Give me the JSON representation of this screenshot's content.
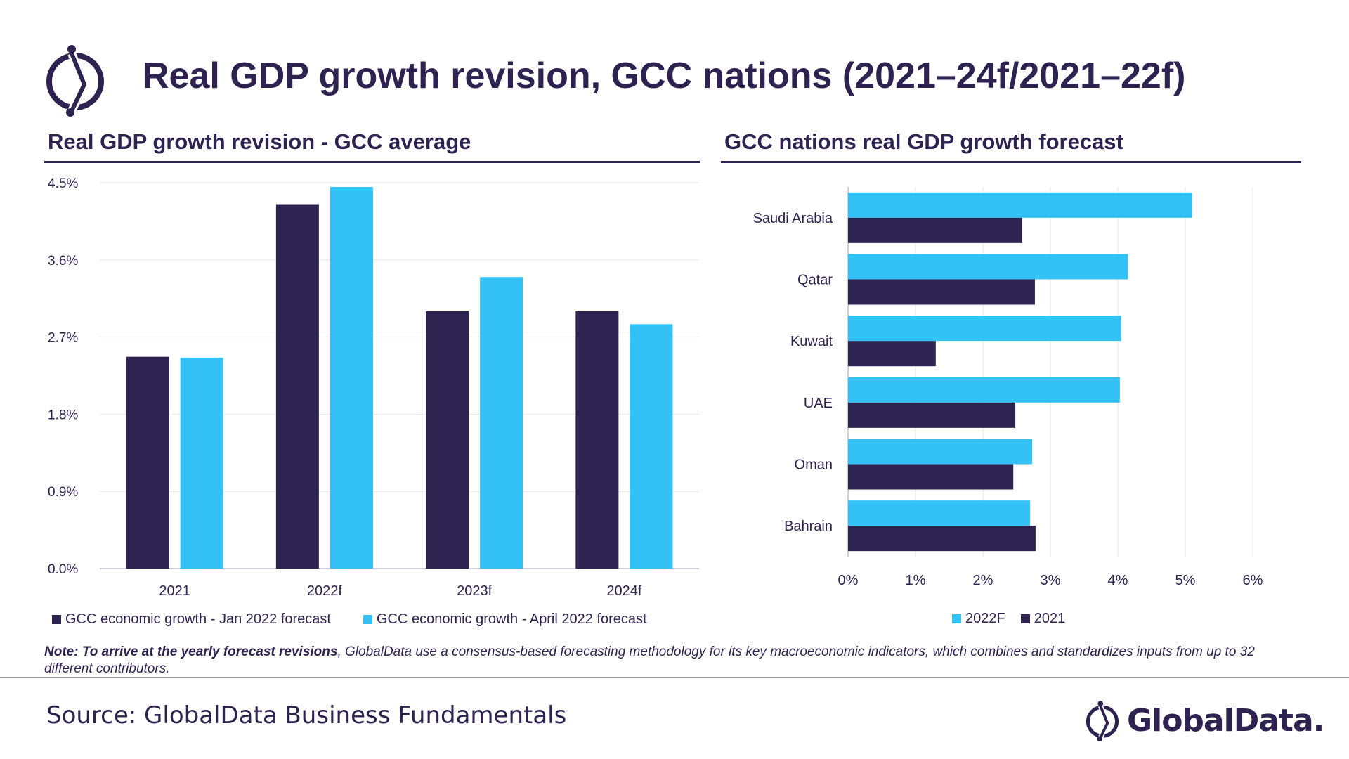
{
  "header": {
    "title": "Real GDP growth revision, GCC nations (2021–24f/2021–22f)"
  },
  "colors": {
    "dark": "#2d2250",
    "light": "#33c1f6",
    "grid": "#e6e6ea",
    "axis": "#d0d0d6"
  },
  "icons": {
    "logo": "globaldata-logo-icon"
  },
  "chart_data": [
    {
      "type": "bar",
      "title": "Real GDP growth revision - GCC average",
      "categories": [
        "2021",
        "2022f",
        "2023f",
        "2024f"
      ],
      "series": [
        {
          "name": "GCC economic growth - Jan 2022 forecast",
          "values": [
            2.47,
            4.25,
            3.0,
            3.0
          ]
        },
        {
          "name": "GCC economic growth - April 2022 forecast",
          "values": [
            2.46,
            4.45,
            3.4,
            2.85
          ]
        }
      ],
      "ylim": [
        0,
        4.5
      ],
      "yticks": [
        "0.0%",
        "0.9%",
        "1.8%",
        "2.7%",
        "3.6%",
        "4.5%"
      ],
      "ytick_values": [
        0,
        0.9,
        1.8,
        2.7,
        3.6,
        4.5
      ],
      "xlabel": "",
      "ylabel": "",
      "legend": "bottom"
    },
    {
      "type": "bar",
      "orientation": "horizontal",
      "title": "GCC nations real GDP growth forecast",
      "categories": [
        "Saudi Arabia",
        "Qatar",
        "Kuwait",
        "UAE",
        "Oman",
        "Bahrain"
      ],
      "series": [
        {
          "name": "2022F",
          "values": [
            5.1,
            4.15,
            4.05,
            4.03,
            2.73,
            2.7
          ]
        },
        {
          "name": "2021",
          "values": [
            2.58,
            2.77,
            1.3,
            2.48,
            2.45,
            2.78
          ]
        }
      ],
      "xlim": [
        0,
        6
      ],
      "xticks": [
        "0%",
        "1%",
        "2%",
        "3%",
        "4%",
        "5%",
        "6%"
      ],
      "xtick_values": [
        0,
        1,
        2,
        3,
        4,
        5,
        6
      ],
      "xlabel": "",
      "ylabel": "",
      "legend": "bottom"
    }
  ],
  "note": {
    "bold": "Note: To arrive at the yearly forecast revisions",
    "text": ", GlobalData use a consensus-based forecasting methodology for its key macroeconomic indicators, which combines and standardizes inputs from up to 32 different contributors."
  },
  "footer": {
    "source": "Source: GlobalData Business Fundamentals",
    "brand": "GlobalData."
  }
}
